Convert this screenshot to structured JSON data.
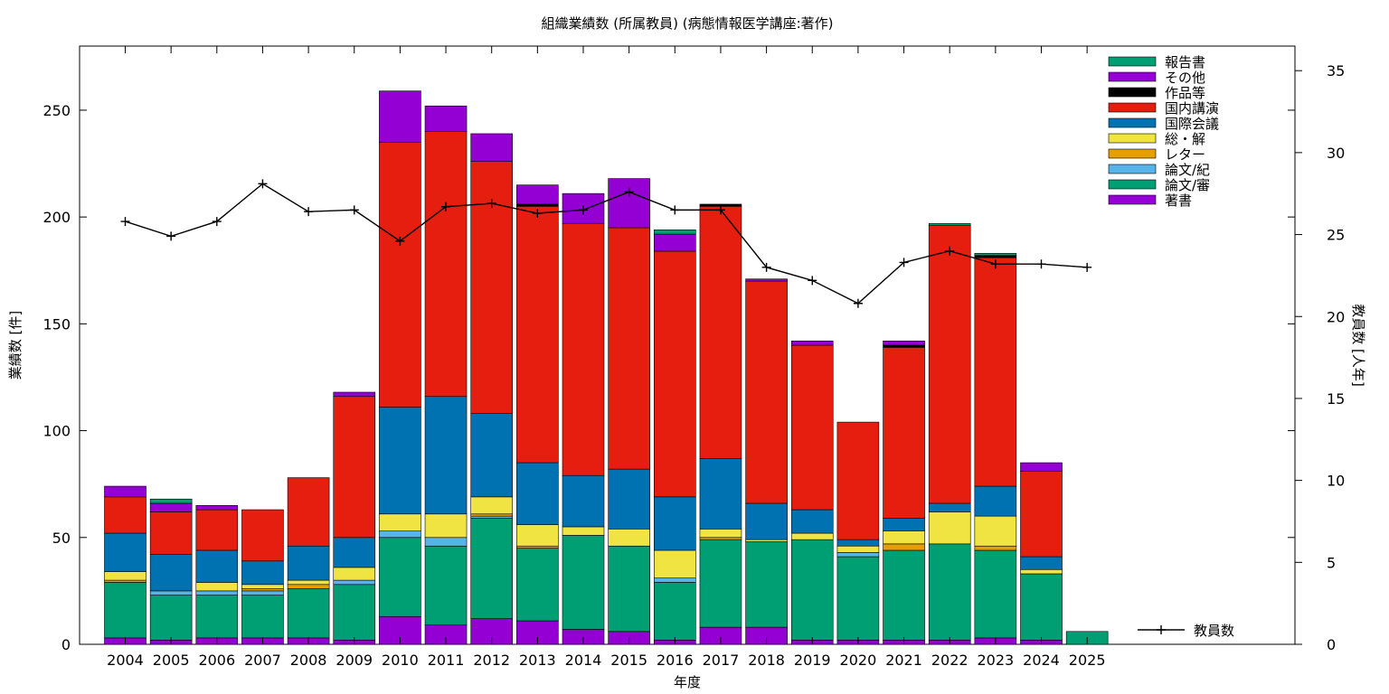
{
  "chart_data": {
    "type": "bar",
    "stacked": true,
    "title": "組織業績数 (所属教員) (病態情報医学講座:著作)",
    "xlabel": "年度",
    "ylabel": "業績数 [件]",
    "y2label": "教員数 [人年]",
    "ylim": [
      0,
      280
    ],
    "y2lim": [
      0,
      36.5
    ],
    "yticks": [
      0,
      50,
      100,
      150,
      200,
      250
    ],
    "y2ticks": [
      0,
      5,
      10,
      15,
      20,
      25,
      30,
      35
    ],
    "grid": false,
    "legend_position": "top-right",
    "categories": [
      "2004",
      "2005",
      "2006",
      "2007",
      "2008",
      "2009",
      "2010",
      "2011",
      "2012",
      "2013",
      "2014",
      "2015",
      "2016",
      "2017",
      "2018",
      "2019",
      "2020",
      "2021",
      "2022",
      "2023",
      "2024",
      "2025"
    ],
    "series": [
      {
        "name": "著書",
        "color": "#9400d3",
        "values": [
          3,
          2,
          3,
          3,
          3,
          2,
          13,
          9,
          12,
          11,
          7,
          6,
          2,
          8,
          8,
          2,
          2,
          2,
          2,
          3,
          2,
          0
        ]
      },
      {
        "name": "論文/審",
        "color": "#009e73",
        "values": [
          26,
          21,
          20,
          20,
          23,
          26,
          37,
          37,
          47,
          34,
          44,
          40,
          27,
          41,
          40,
          47,
          39,
          42,
          45,
          41,
          31,
          0
        ]
      },
      {
        "name": "論文/紀",
        "color": "#56b4e9",
        "values": [
          0,
          2,
          2,
          2,
          0,
          2,
          3,
          4,
          1,
          0,
          0,
          0,
          2,
          0,
          0,
          0,
          2,
          0,
          0,
          0,
          0,
          0
        ]
      },
      {
        "name": "レター",
        "color": "#e69f00",
        "values": [
          1,
          0,
          0,
          1,
          2,
          0,
          0,
          0,
          1,
          1,
          0,
          0,
          0,
          1,
          0,
          0,
          0,
          3,
          0,
          2,
          0,
          0
        ]
      },
      {
        "name": "総・解",
        "color": "#f0e442",
        "values": [
          4,
          0,
          4,
          2,
          2,
          6,
          8,
          11,
          8,
          10,
          4,
          8,
          13,
          4,
          1,
          3,
          3,
          6,
          15,
          14,
          2,
          0
        ]
      },
      {
        "name": "国際会議",
        "color": "#0072b2",
        "values": [
          18,
          17,
          15,
          11,
          16,
          14,
          50,
          55,
          39,
          29,
          24,
          28,
          25,
          33,
          17,
          11,
          3,
          6,
          4,
          14,
          6,
          0
        ]
      },
      {
        "name": "国内講演",
        "color": "#e51e10",
        "values": [
          17,
          20,
          19,
          24,
          32,
          66,
          124,
          124,
          118,
          120,
          118,
          113,
          115,
          118,
          104,
          77,
          55,
          80,
          130,
          107,
          40,
          0
        ]
      },
      {
        "name": "作品等",
        "color": "#000000",
        "values": [
          0,
          0,
          0,
          0,
          0,
          0,
          0,
          0,
          0,
          1,
          0,
          0,
          0,
          1,
          0,
          0,
          0,
          1,
          0,
          1,
          0,
          0
        ]
      },
      {
        "name": "その他",
        "color": "#9400d3",
        "values": [
          5,
          4,
          2,
          0,
          0,
          2,
          24,
          12,
          13,
          9,
          14,
          23,
          8,
          0,
          1,
          2,
          0,
          2,
          0,
          0,
          4,
          0
        ]
      },
      {
        "name": "報告書",
        "color": "#009e73",
        "values": [
          0,
          2,
          0,
          0,
          0,
          0,
          0,
          0,
          0,
          0,
          0,
          0,
          2,
          0,
          0,
          0,
          0,
          0,
          1,
          1,
          0,
          6
        ]
      }
    ],
    "line_series": {
      "name": "教員数",
      "color": "#000000",
      "values": [
        25.8,
        24.9,
        25.8,
        28.1,
        26.4,
        26.5,
        24.6,
        26.7,
        26.9,
        26.3,
        26.5,
        27.6,
        26.5,
        26.5,
        23.0,
        22.2,
        20.8,
        23.3,
        24.0,
        23.2,
        23.2,
        23.0
      ]
    }
  }
}
